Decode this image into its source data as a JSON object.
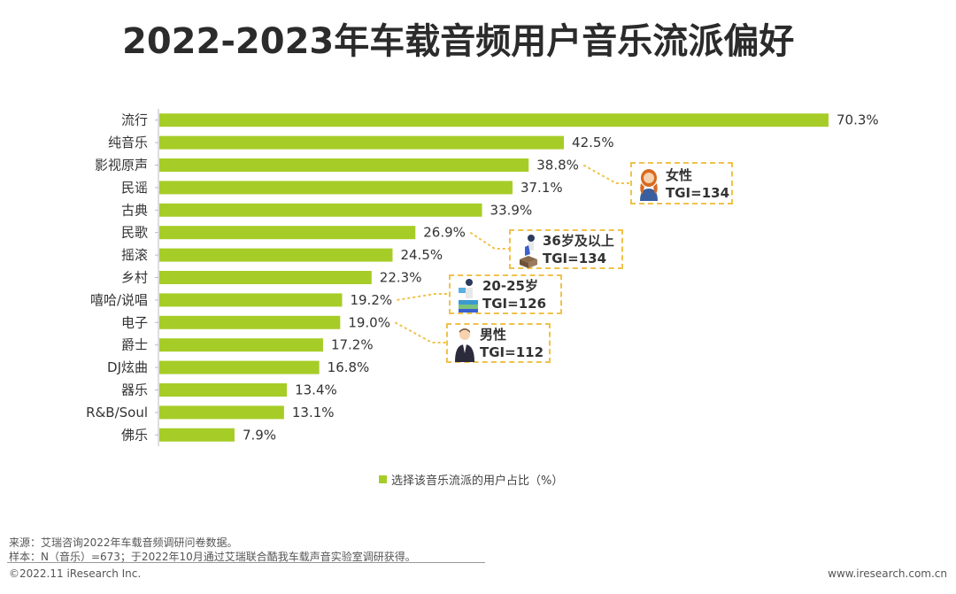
{
  "title": "2022-2023年车载音频用户音乐流派偏好",
  "chart_data": {
    "type": "bar",
    "orientation": "horizontal",
    "categories": [
      "流行",
      "纯音乐",
      "影视原声",
      "民谣",
      "古典",
      "民歌",
      "摇滚",
      "乡村",
      "嘻哈/说唱",
      "电子",
      "爵士",
      "DJ炫曲",
      "器乐",
      "R&B/Soul",
      "佛乐"
    ],
    "values": [
      70.3,
      42.5,
      38.8,
      37.1,
      33.9,
      26.9,
      24.5,
      22.3,
      19.2,
      19.0,
      17.2,
      16.8,
      13.4,
      13.1,
      7.9
    ],
    "value_labels": [
      "70.3%",
      "42.5%",
      "38.8%",
      "37.1%",
      "33.9%",
      "26.9%",
      "24.5%",
      "22.3%",
      "19.2%",
      "19.0%",
      "17.2%",
      "16.8%",
      "13.4%",
      "13.1%",
      "7.9%"
    ],
    "series": [
      {
        "name": "选择该音乐流派的用户占比（%）",
        "values": [
          70.3,
          42.5,
          38.8,
          37.1,
          33.9,
          26.9,
          24.5,
          22.3,
          19.2,
          19.0,
          17.2,
          16.8,
          13.4,
          13.1,
          7.9
        ]
      }
    ],
    "legend": "bottom",
    "grid": false,
    "bar_color": "#a6cd27",
    "annotation_color": "#f0c24a"
  },
  "legend_label": "选择该音乐流派的用户占比（%）",
  "annotations": [
    {
      "category": "影视原声",
      "group": "女性",
      "tgi": "TGI=134",
      "icon": "woman-avatar-icon"
    },
    {
      "category": "民歌",
      "group": "36岁及以上",
      "tgi": "TGI=134",
      "icon": "older-person-avatar-icon"
    },
    {
      "category": "嘻哈/说唱",
      "group": "20-25岁",
      "tgi": "TGI=126",
      "icon": "young-person-avatar-icon"
    },
    {
      "category": "电子",
      "group": "男性",
      "tgi": "TGI=112",
      "icon": "man-avatar-icon"
    }
  ],
  "footer": {
    "source": "来源：艾瑞咨询2022年车载音频调研问卷数据。",
    "sample": "样本：N（音乐）=673；于2022年10月通过艾瑞联合酷我车载声音实验室调研获得。",
    "copyright": "©2022.11 iResearch Inc.",
    "website": "www.iresearch.com.cn"
  }
}
